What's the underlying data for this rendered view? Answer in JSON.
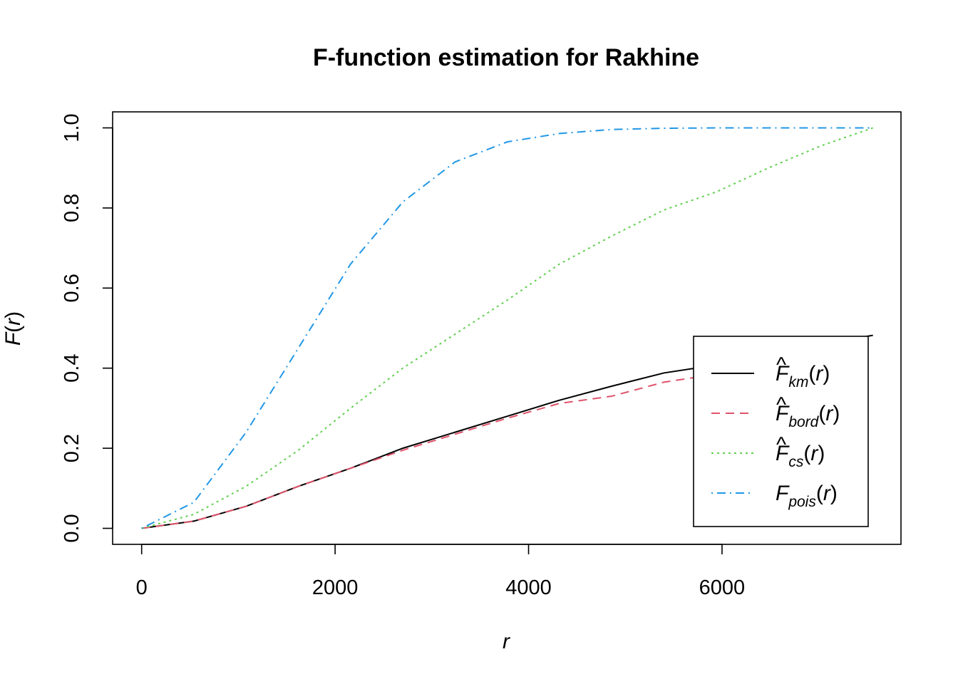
{
  "chart_data": {
    "type": "line",
    "title": "F-function estimation for Rakhine",
    "xlabel": "r",
    "ylabel": "F(r)",
    "xlim": [
      -300,
      7850
    ],
    "ylim": [
      -0.04,
      1.04
    ],
    "xticks": [
      0,
      2000,
      4000,
      6000
    ],
    "xtick_labels": [
      "0",
      "2000",
      "4000",
      "6000"
    ],
    "yticks": [
      0.0,
      0.2,
      0.4,
      0.6,
      0.8,
      1.0
    ],
    "ytick_labels": [
      "0.0",
      "0.2",
      "0.4",
      "0.6",
      "0.8",
      "1.0"
    ],
    "grid": false,
    "legend_position": "bottom-right",
    "x": [
      0,
      540,
      1080,
      1620,
      2160,
      2700,
      3240,
      3780,
      4320,
      4860,
      5400,
      5940,
      6480,
      7020,
      7560
    ],
    "series": [
      {
        "key": "km",
        "name": "F̂km(r)",
        "main": "F",
        "sub": "km",
        "hat": true,
        "color": "#000000",
        "dash": "",
        "values": [
          0.0,
          0.018,
          0.055,
          0.105,
          0.15,
          0.2,
          0.24,
          0.28,
          0.32,
          0.355,
          0.388,
          0.408,
          0.435,
          0.46,
          0.482
        ]
      },
      {
        "key": "bord",
        "name": "F̂bord(r)",
        "main": "F",
        "sub": "bord",
        "hat": true,
        "color": "#DF536B",
        "dash": "12,8",
        "values": [
          0.0,
          0.018,
          0.055,
          0.105,
          0.15,
          0.195,
          0.235,
          0.275,
          0.312,
          0.33,
          0.365,
          0.385,
          0.405,
          0.428,
          0.448
        ]
      },
      {
        "key": "cs",
        "name": "F̂cs(r)",
        "main": "F",
        "sub": "cs",
        "hat": true,
        "color": "#61D04F",
        "dash": "3,5",
        "values": [
          0.0,
          0.035,
          0.105,
          0.195,
          0.3,
          0.4,
          0.485,
          0.57,
          0.66,
          0.73,
          0.795,
          0.84,
          0.9,
          0.955,
          1.0
        ]
      },
      {
        "key": "pois",
        "name": "Fpois(r)",
        "main": "F",
        "sub": "pois",
        "hat": false,
        "color": "#2297E6",
        "dash": "2,6,12,6",
        "values": [
          0.0,
          0.065,
          0.24,
          0.45,
          0.66,
          0.815,
          0.915,
          0.965,
          0.986,
          0.996,
          0.999,
          1.0,
          1.0,
          1.0,
          1.0
        ]
      }
    ]
  }
}
